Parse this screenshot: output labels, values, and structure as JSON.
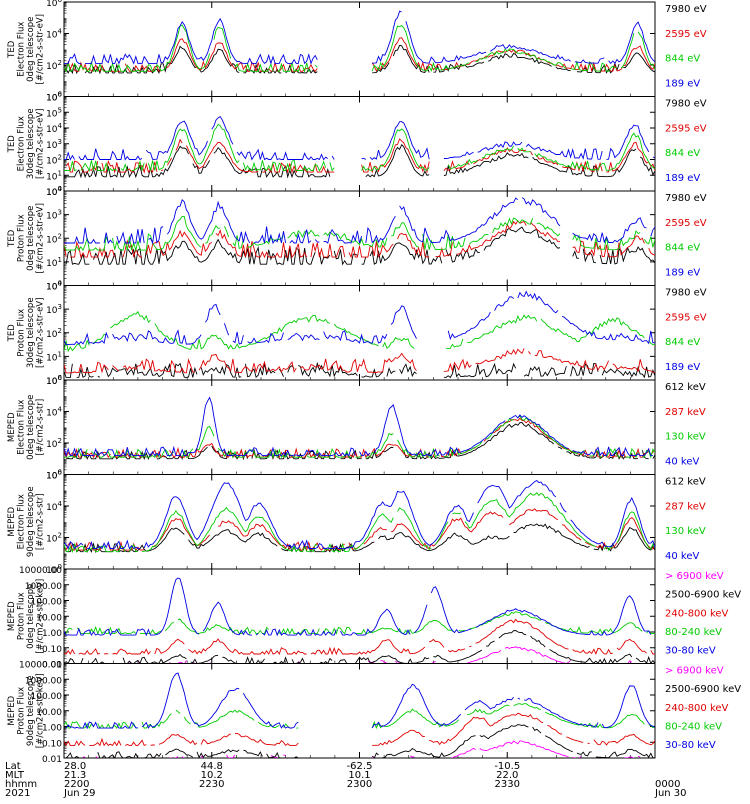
{
  "colors": {
    "black": "#000000",
    "red": "#e00000",
    "green": "#00cc00",
    "blue": "#0000e6",
    "magenta": "#ff00ff"
  },
  "chart_data": [
    {
      "type": "line",
      "instrument": "TED",
      "ylabel": [
        "TED",
        "Electron Flux",
        "0deg telescope",
        "[#/cm2-s-str-eV]"
      ],
      "yscale": "log",
      "ylim_exp": [
        0,
        6
      ],
      "y_tick_labels": [
        "10^0",
        "10^2",
        "10^4",
        "10^6"
      ],
      "legend": [
        {
          "label": "7980 eV",
          "color": "black"
        },
        {
          "label": "2595 eV",
          "color": "red"
        },
        {
          "label": "844 eV",
          "color": "green"
        },
        {
          "label": "189 eV",
          "color": "blue"
        }
      ],
      "series_order": [
        "black",
        "red",
        "green",
        "blue"
      ],
      "features": [
        {
          "center": 0.2,
          "width": 0.012,
          "peaks": [
            3.2,
            3.6,
            4.5,
            4.6
          ]
        },
        {
          "center": 0.263,
          "width": 0.012,
          "peaks": [
            3.0,
            3.4,
            4.4,
            4.8
          ]
        },
        {
          "center": 0.57,
          "width": 0.014,
          "peaks": [
            3.2,
            3.6,
            4.6,
            5.4
          ]
        },
        {
          "center": 0.755,
          "width": 0.05,
          "peaks": [
            2.6,
            2.9,
            2.9,
            3.2
          ]
        },
        {
          "center": 0.97,
          "width": 0.012,
          "peaks": [
            2.8,
            3.2,
            4.2,
            4.6
          ]
        }
      ],
      "baseline": [
        1.5,
        1.6,
        1.6,
        2.1
      ],
      "noise": 0.6,
      "gaps": [
        [
          0.43,
          0.52
        ]
      ]
    },
    {
      "type": "line",
      "instrument": "TED",
      "ylabel": [
        "TED",
        "Electron Flux",
        "30deg telescope",
        "[#/cm2-s-str-eV]"
      ],
      "yscale": "log",
      "ylim_exp": [
        0,
        6
      ],
      "y_tick_labels": [
        "10^0",
        "10^1",
        "10^2",
        "10^3",
        "10^4",
        "10^5",
        "10^6"
      ],
      "legend": [
        {
          "label": "7980 eV",
          "color": "black"
        },
        {
          "label": "2595 eV",
          "color": "red"
        },
        {
          "label": "844 eV",
          "color": "green"
        },
        {
          "label": "189 eV",
          "color": "blue"
        }
      ],
      "series_order": [
        "black",
        "red",
        "green",
        "blue"
      ],
      "features": [
        {
          "center": 0.2,
          "width": 0.014,
          "peaks": [
            2.8,
            3.2,
            4.0,
            4.4
          ]
        },
        {
          "center": 0.263,
          "width": 0.016,
          "peaks": [
            2.6,
            3.0,
            4.2,
            4.6
          ]
        },
        {
          "center": 0.57,
          "width": 0.014,
          "peaks": [
            2.8,
            3.2,
            4.0,
            4.4
          ]
        },
        {
          "center": 0.76,
          "width": 0.05,
          "peaks": [
            2.3,
            2.6,
            2.7,
            3.0
          ]
        },
        {
          "center": 0.965,
          "width": 0.014,
          "peaks": [
            2.6,
            3.0,
            3.6,
            4.2
          ]
        }
      ],
      "baseline": [
        0.9,
        1.2,
        1.3,
        2.0
      ],
      "noise": 0.7,
      "gaps": [
        [
          0.46,
          0.5
        ],
        [
          0.62,
          0.64
        ]
      ]
    },
    {
      "type": "line",
      "instrument": "TED",
      "ylabel": [
        "TED",
        "Proton Flux",
        "0deg telescope",
        "[#/cm2-s-str-eV]"
      ],
      "yscale": "log",
      "ylim_exp": [
        0,
        4
      ],
      "y_tick_labels": [
        "10^0",
        "10^1",
        "10^2",
        "10^3",
        "10^4"
      ],
      "legend": [
        {
          "label": "7980 eV",
          "color": "black"
        },
        {
          "label": "2595 eV",
          "color": "red"
        },
        {
          "label": "844 eV",
          "color": "green"
        },
        {
          "label": "189 eV",
          "color": "blue"
        }
      ],
      "series_order": [
        "black",
        "red",
        "green",
        "blue"
      ],
      "features": [
        {
          "center": 0.2,
          "width": 0.014,
          "peaks": [
            1.8,
            2.2,
            2.8,
            3.5
          ]
        },
        {
          "center": 0.263,
          "width": 0.014,
          "peaks": [
            1.8,
            2.2,
            2.6,
            3.4
          ]
        },
        {
          "center": 0.42,
          "width": 0.06,
          "peaks": [
            0.6,
            0.8,
            2.2,
            1.8
          ]
        },
        {
          "center": 0.57,
          "width": 0.014,
          "peaks": [
            1.8,
            2.2,
            2.6,
            3.3
          ]
        },
        {
          "center": 0.775,
          "width": 0.05,
          "peaks": [
            2.4,
            2.6,
            2.8,
            3.6
          ]
        },
        {
          "center": 0.97,
          "width": 0.014,
          "peaks": [
            1.6,
            2.0,
            2.2,
            2.8
          ]
        }
      ],
      "baseline": [
        0.9,
        1.2,
        1.5,
        1.8
      ],
      "noise": 0.7,
      "gaps": [
        [
          0.84,
          0.86
        ]
      ]
    },
    {
      "type": "line",
      "instrument": "TED",
      "ylabel": [
        "TED",
        "Proton Flux",
        "30deg telescope",
        "[#/cm2-s-str-eV]"
      ],
      "yscale": "log",
      "ylim_exp": [
        0,
        4
      ],
      "y_tick_labels": [
        "10^0",
        "10^1",
        "10^2",
        "10^3",
        "10^4"
      ],
      "legend": [
        {
          "label": "7980 eV",
          "color": "black"
        },
        {
          "label": "2595 eV",
          "color": "red"
        },
        {
          "label": "844 eV",
          "color": "green"
        },
        {
          "label": "189 eV",
          "color": "blue"
        }
      ],
      "series_order": [
        "black",
        "red",
        "green",
        "blue"
      ],
      "features": [
        {
          "center": 0.12,
          "width": 0.04,
          "peaks": [
            0.3,
            0.5,
            2.8,
            1.8
          ]
        },
        {
          "center": 0.255,
          "width": 0.014,
          "peaks": [
            0.4,
            1.0,
            1.8,
            3.2
          ]
        },
        {
          "center": 0.42,
          "width": 0.06,
          "peaks": [
            0.3,
            0.5,
            2.6,
            1.8
          ]
        },
        {
          "center": 0.57,
          "width": 0.014,
          "peaks": [
            0.4,
            1.0,
            1.8,
            3.1
          ]
        },
        {
          "center": 0.78,
          "width": 0.06,
          "peaks": [
            0.3,
            1.2,
            2.6,
            3.6
          ]
        },
        {
          "center": 0.93,
          "width": 0.04,
          "peaks": [
            0.3,
            0.5,
            2.5,
            1.8
          ]
        }
      ],
      "baseline": [
        0.1,
        0.3,
        1.2,
        1.5
      ],
      "noise": 0.6,
      "gaps": [
        [
          0.6,
          0.64
        ]
      ]
    },
    {
      "type": "line",
      "instrument": "MEPED",
      "ylabel": [
        "MEPED",
        "Electron Flux",
        "0deg telescope",
        "[#/cm2-s-str]"
      ],
      "yscale": "log",
      "ylim_exp": [
        0,
        6
      ],
      "y_tick_labels": [
        "10^0",
        "10^2",
        "10^4",
        "10^6"
      ],
      "legend": [
        {
          "label": "612 keV",
          "color": "black"
        },
        {
          "label": "287 keV",
          "color": "red"
        },
        {
          "label": "130 keV",
          "color": "green"
        },
        {
          "label": "40 keV",
          "color": "blue"
        }
      ],
      "series_order": [
        "black",
        "red",
        "green",
        "blue"
      ],
      "features": [
        {
          "center": 0.245,
          "width": 0.01,
          "peaks": [
            1.8,
            2.0,
            3.0,
            4.8
          ]
        },
        {
          "center": 0.555,
          "width": 0.012,
          "peaks": [
            1.8,
            2.0,
            2.6,
            4.4
          ]
        },
        {
          "center": 0.77,
          "width": 0.045,
          "peaks": [
            3.2,
            3.5,
            3.6,
            3.7
          ]
        }
      ],
      "baseline": [
        1.0,
        1.1,
        1.1,
        1.2
      ],
      "noise": 0.55,
      "gaps": []
    },
    {
      "type": "line",
      "instrument": "MEPED",
      "ylabel": [
        "MEPED",
        "Electron Flux",
        "90deg telescope",
        "[#/cm2-s-str]"
      ],
      "yscale": "log",
      "ylim_exp": [
        0,
        6
      ],
      "y_tick_labels": [
        "10^0",
        "10^2",
        "10^4",
        "10^6"
      ],
      "legend": [
        {
          "label": "612 keV",
          "color": "black"
        },
        {
          "label": "287 keV",
          "color": "red"
        },
        {
          "label": "130 keV",
          "color": "green"
        },
        {
          "label": "40 keV",
          "color": "blue"
        }
      ],
      "series_order": [
        "black",
        "red",
        "green",
        "blue"
      ],
      "features": [
        {
          "center": 0.19,
          "width": 0.018,
          "peaks": [
            2.6,
            3.2,
            3.6,
            4.6
          ]
        },
        {
          "center": 0.275,
          "width": 0.025,
          "peaks": [
            2.4,
            3.0,
            3.8,
            5.4
          ]
        },
        {
          "center": 0.33,
          "width": 0.02,
          "peaks": [
            2.2,
            2.8,
            3.4,
            4.2
          ]
        },
        {
          "center": 0.54,
          "width": 0.02,
          "peaks": [
            2.0,
            2.6,
            3.4,
            4.2
          ]
        },
        {
          "center": 0.57,
          "width": 0.02,
          "peaks": [
            2.2,
            2.8,
            3.8,
            5.0
          ]
        },
        {
          "center": 0.665,
          "width": 0.02,
          "peaks": [
            2.2,
            3.2,
            3.6,
            4.0
          ]
        },
        {
          "center": 0.725,
          "width": 0.03,
          "peaks": [
            2.0,
            3.6,
            4.4,
            5.4
          ]
        },
        {
          "center": 0.8,
          "width": 0.045,
          "peaks": [
            2.8,
            3.8,
            4.8,
            5.5
          ]
        },
        {
          "center": 0.96,
          "width": 0.014,
          "peaks": [
            2.6,
            3.2,
            3.6,
            4.4
          ]
        }
      ],
      "baseline": [
        1.1,
        1.2,
        1.1,
        1.3
      ],
      "noise": 0.5,
      "gaps": []
    },
    {
      "type": "line",
      "instrument": "MEPED",
      "ylabel": [
        "MEPED",
        "Proton Flux",
        "0deg telescope",
        "[#/cm2-s-str-keV]"
      ],
      "yscale": "log",
      "ylim_exp": [
        -2,
        4
      ],
      "y_tick_labels": [
        "0.01",
        "0.10",
        "1.00",
        "10.00",
        "100.00",
        "1000.00",
        "10000.00"
      ],
      "legend": [
        {
          "label": "> 6900 keV",
          "color": "magenta"
        },
        {
          "label": "2500-6900 keV",
          "color": "black"
        },
        {
          "label": "240-800 keV",
          "color": "red"
        },
        {
          "label": "80-240 keV",
          "color": "green"
        },
        {
          "label": "30-80 keV",
          "color": "blue"
        }
      ],
      "series_order": [
        "magenta",
        "black",
        "red",
        "green",
        "blue"
      ],
      "features": [
        {
          "center": 0.193,
          "width": 0.012,
          "peaks": [
            -2.0,
            -1.5,
            -0.5,
            0.8,
            3.5
          ]
        },
        {
          "center": 0.26,
          "width": 0.012,
          "peaks": [
            -2.0,
            -1.5,
            -0.5,
            0.4,
            1.8
          ]
        },
        {
          "center": 0.545,
          "width": 0.012,
          "peaks": [
            -2.0,
            -1.5,
            -0.5,
            0.3,
            1.4
          ]
        },
        {
          "center": 0.627,
          "width": 0.014,
          "peaks": [
            -2.0,
            -1.5,
            -0.5,
            0.8,
            2.8
          ]
        },
        {
          "center": 0.765,
          "width": 0.045,
          "peaks": [
            -1.0,
            0.0,
            0.7,
            1.2,
            1.4
          ]
        },
        {
          "center": 0.957,
          "width": 0.012,
          "peaks": [
            -2.0,
            -1.5,
            -0.5,
            0.6,
            2.3
          ]
        }
      ],
      "baseline": [
        -2.2,
        -2.0,
        -1.4,
        -0.1,
        -0.2
      ],
      "noise": 0.4,
      "gaps": []
    },
    {
      "type": "line",
      "instrument": "MEPED",
      "ylabel": [
        "MEPED",
        "Proton Flux",
        "90deg telescope",
        "[#/cm2-s-str-keV]"
      ],
      "yscale": "log",
      "ylim_exp": [
        -2,
        4
      ],
      "y_tick_labels": [
        "0.01",
        "0.10",
        "1.00",
        "10.00",
        "100.00",
        "1000.00",
        "10000.00"
      ],
      "legend": [
        {
          "label": "> 6900 keV",
          "color": "magenta"
        },
        {
          "label": "2500-6900 keV",
          "color": "black"
        },
        {
          "label": "240-800 keV",
          "color": "red"
        },
        {
          "label": "80-240 keV",
          "color": "green"
        },
        {
          "label": "30-80 keV",
          "color": "blue"
        }
      ],
      "series_order": [
        "magenta",
        "black",
        "red",
        "green",
        "blue"
      ],
      "features": [
        {
          "center": 0.19,
          "width": 0.014,
          "peaks": [
            -2.0,
            -1.5,
            -0.5,
            1.0,
            3.4
          ]
        },
        {
          "center": 0.29,
          "width": 0.025,
          "peaks": [
            -2.0,
            -1.5,
            -0.5,
            1.0,
            2.4
          ]
        },
        {
          "center": 0.59,
          "width": 0.02,
          "peaks": [
            -2.0,
            -1.5,
            -0.3,
            1.0,
            2.6
          ]
        },
        {
          "center": 0.7,
          "width": 0.025,
          "peaks": [
            -1.4,
            -0.5,
            0.6,
            1.0,
            1.6
          ]
        },
        {
          "center": 0.77,
          "width": 0.05,
          "peaks": [
            -1.0,
            0.1,
            0.8,
            1.4,
            1.8
          ]
        },
        {
          "center": 0.96,
          "width": 0.014,
          "peaks": [
            -2.0,
            -1.5,
            -0.5,
            0.8,
            2.6
          ]
        }
      ],
      "baseline": [
        -2.2,
        -2.0,
        -1.2,
        -0.1,
        -0.1
      ],
      "noise": 0.4,
      "gaps": [
        [
          0.4,
          0.52
        ]
      ]
    }
  ],
  "time_axis": {
    "row_labels": [
      "Lat",
      "MLT",
      "hhmm",
      "2021"
    ],
    "ticks": [
      {
        "pos": 0.0,
        "lat": "28.0",
        "mlt": "21.3",
        "hhmm": "2200",
        "date": "Jun 29"
      },
      {
        "pos": 0.25,
        "lat": "44.8",
        "mlt": "10.2",
        "hhmm": "2230",
        "date": ""
      },
      {
        "pos": 0.5,
        "lat": "-62.5",
        "mlt": "10.1",
        "hhmm": "2300",
        "date": ""
      },
      {
        "pos": 0.75,
        "lat": "-10.5",
        "mlt": "22.0",
        "hhmm": "2330",
        "date": ""
      },
      {
        "pos": 1.0,
        "lat": "",
        "mlt": "",
        "hhmm": "0000",
        "date": "Jun 30"
      }
    ]
  }
}
